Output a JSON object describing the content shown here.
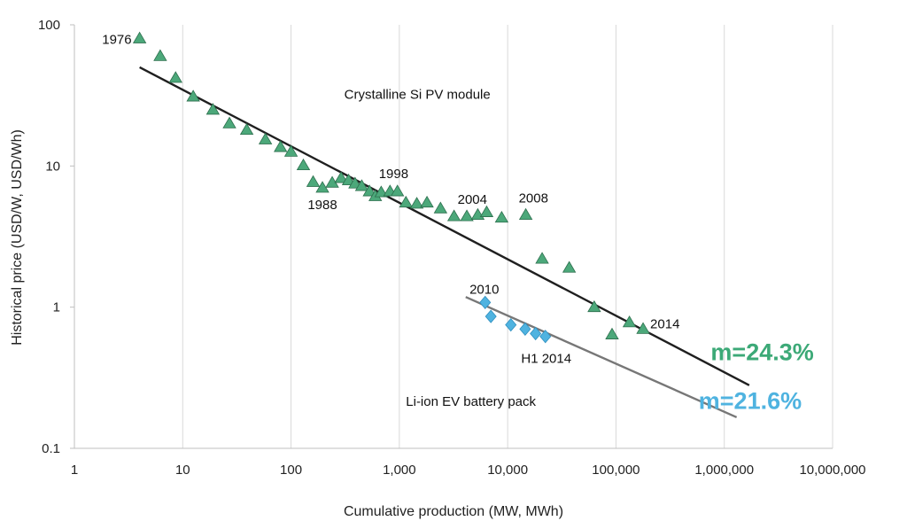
{
  "chart_data": {
    "type": "scatter",
    "title": "",
    "xlabel": "Cumulative production (MW, MWh)",
    "ylabel": "Historical price (USD/W, USD/Wh)",
    "x_scale": "log",
    "y_scale": "log",
    "xlim": [
      1,
      10000000
    ],
    "ylim": [
      0.1,
      100
    ],
    "x_ticks": [
      1,
      10,
      100,
      1000,
      10000,
      100000,
      1000000,
      10000000
    ],
    "x_tick_labels": [
      "1",
      "10",
      "100",
      "1,000",
      "10,000",
      "100,000",
      "1,000,000",
      "10,000,000"
    ],
    "y_ticks": [
      0.1,
      1,
      10,
      100
    ],
    "y_tick_labels": [
      "0.1",
      "1",
      "10",
      "100"
    ],
    "grid": "vertical",
    "series": [
      {
        "label": "Crystalline Si PV module",
        "marker": "triangle",
        "color": "#4CA87A",
        "x": [
          4,
          6.2,
          8.6,
          12.5,
          19,
          27,
          39,
          58,
          80,
          100,
          130,
          160,
          195,
          240,
          290,
          340,
          390,
          450,
          530,
          600,
          680,
          820,
          960,
          1150,
          1450,
          1800,
          2400,
          3200,
          4200,
          5300,
          6400,
          8800,
          14700,
          20800,
          37000,
          63000,
          92000,
          133000,
          178000
        ],
        "y": [
          80,
          60,
          42,
          31,
          25,
          20,
          18,
          15.4,
          13.6,
          12.6,
          10.1,
          7.7,
          7.0,
          7.6,
          8.2,
          7.9,
          7.5,
          7.2,
          6.6,
          6.1,
          6.5,
          6.6,
          6.6,
          5.5,
          5.4,
          5.5,
          5.0,
          4.4,
          4.4,
          4.5,
          4.7,
          4.3,
          4.5,
          2.2,
          1.9,
          1.0,
          0.64,
          0.78,
          0.7
        ]
      },
      {
        "label": "Li-ion EV battery pack",
        "marker": "diamond",
        "color": "#4FB3E0",
        "x": [
          6200,
          7000,
          10700,
          14500,
          18100,
          22300
        ],
        "y": [
          1.08,
          0.86,
          0.75,
          0.7,
          0.65,
          0.62
        ]
      }
    ],
    "trendlines": [
      {
        "name": "PV trend",
        "color": "#1f1f1f",
        "from": [
          4,
          50
        ],
        "to": [
          1700000,
          0.28
        ]
      },
      {
        "name": "Battery trend",
        "color": "#777777",
        "from": [
          4100,
          1.18
        ],
        "to": [
          1300000,
          0.166
        ]
      }
    ],
    "point_labels": [
      {
        "text": "1976",
        "x": 4,
        "y": 80,
        "anchor": "end",
        "dx": -9,
        "dy": 6
      },
      {
        "text": "1988",
        "x": 195,
        "y": 7.0,
        "anchor": "middle",
        "dx": 0,
        "dy": 24
      },
      {
        "text": "1998",
        "x": 960,
        "y": 6.6,
        "anchor": "start",
        "dx": -21,
        "dy": -15
      },
      {
        "text": "2004",
        "x": 3200,
        "y": 4.4,
        "anchor": "start",
        "dx": 4,
        "dy": -14
      },
      {
        "text": "2008",
        "x": 14700,
        "y": 4.5,
        "anchor": "start",
        "dx": -8,
        "dy": -14
      },
      {
        "text": "2014",
        "x": 178000,
        "y": 0.7,
        "anchor": "start",
        "dx": 8,
        "dy": -1
      },
      {
        "text": "2010",
        "x": 6200,
        "y": 1.08,
        "anchor": "middle",
        "dx": -1,
        "dy": -10
      },
      {
        "text": "H1 2014",
        "x": 22300,
        "y": 0.62,
        "anchor": "middle",
        "dx": 1,
        "dy": 30
      }
    ],
    "annotations": [
      {
        "text": "Crystalline Si PV module",
        "x": 310,
        "y": 30,
        "anchor": "start",
        "kind": "label"
      },
      {
        "text": "Li-ion EV battery pack",
        "x": 1150,
        "y": 0.2,
        "anchor": "start",
        "kind": "label"
      },
      {
        "text": "m=24.3%",
        "x": 750000,
        "y": 0.42,
        "anchor": "start",
        "kind": "slope",
        "color": "#3CA977"
      },
      {
        "text": "m=21.6%",
        "x": 580000,
        "y": 0.19,
        "anchor": "start",
        "kind": "slope",
        "color": "#4FB3E0"
      }
    ]
  }
}
